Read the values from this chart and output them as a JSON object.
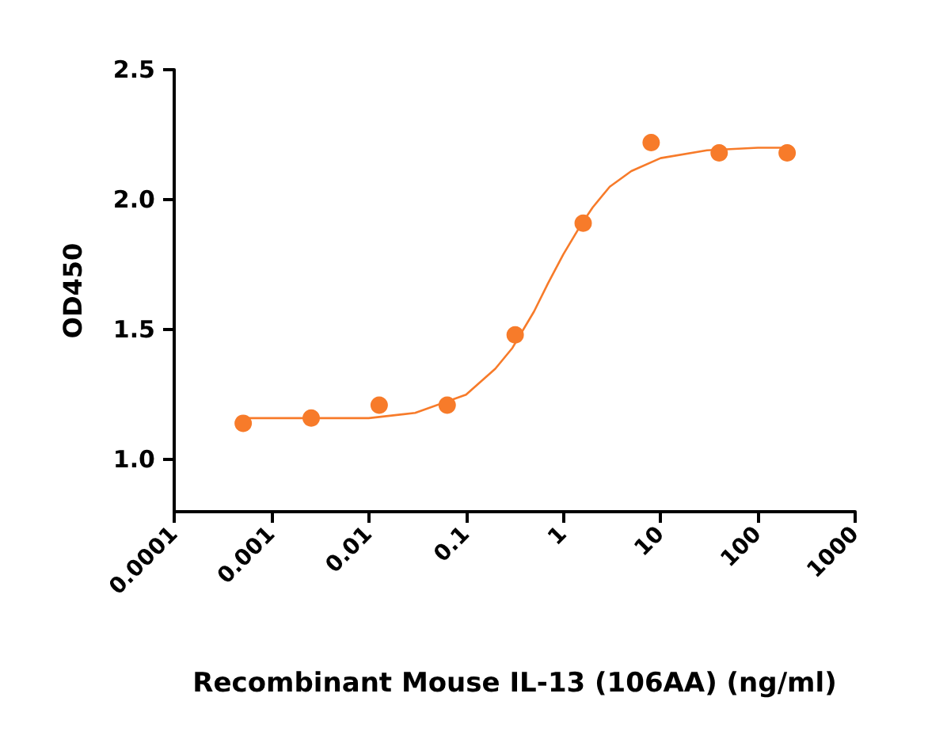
{
  "chart_data": {
    "type": "scatter",
    "xlabel": "Recombinant Mouse IL-13 (106AA) (ng/ml)",
    "ylabel": "OD450",
    "log": "x",
    "grid": false,
    "marker": "circle",
    "xlim": [
      0.0001,
      1000
    ],
    "xticks": [
      0.0001,
      0.001,
      0.01,
      0.1,
      1,
      10,
      100,
      1000
    ],
    "ylim": [
      0.8,
      2.5
    ],
    "yticks": [
      {
        "value": 1,
        "label": "1.0"
      },
      {
        "value": 1.5,
        "label": "1.5"
      },
      {
        "value": 2,
        "label": "2.0"
      },
      {
        "value": 2.5,
        "label": "2.5"
      }
    ],
    "series": [
      {
        "color": "#f77b2a",
        "x": [
          0.000512,
          0.00256,
          0.0128,
          0.064,
          0.32,
          1.6,
          8,
          40,
          200
        ],
        "values": [
          1.14,
          1.16,
          1.21,
          1.21,
          1.48,
          1.91,
          2.22,
          2.18,
          2.18
        ]
      },
      {
        "type": "line",
        "color": "#f77b2a",
        "line_style": "solid",
        "marker": "none",
        "x": [
          0.0005,
          0.001,
          0.003,
          0.01,
          0.03,
          0.1,
          0.2,
          0.3,
          0.5,
          0.7,
          1,
          1.5,
          2,
          3,
          5,
          10,
          30,
          100,
          200
        ],
        "values": [
          1.16,
          1.16,
          1.16,
          1.16,
          1.18,
          1.25,
          1.35,
          1.43,
          1.57,
          1.68,
          1.79,
          1.9,
          1.97,
          2.05,
          2.11,
          2.16,
          2.19,
          2.2,
          2.2
        ]
      }
    ]
  }
}
